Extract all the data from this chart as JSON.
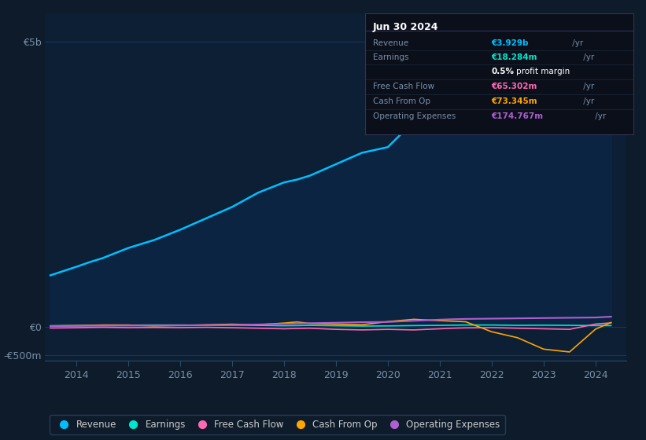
{
  "background_color": "#0d1b2a",
  "plot_bg_color": "#0d1f35",
  "grid_color": "#1e3a5f",
  "title_box": {
    "date": "Jun 30 2024",
    "rows": [
      {
        "label": "Revenue",
        "value": "€3.929b",
        "value_color": "#00bfff"
      },
      {
        "label": "Earnings",
        "value": "€18.284m",
        "value_color": "#00e5cc"
      },
      {
        "label": "",
        "value": "0.5% profit margin",
        "value_color": "#ffffff"
      },
      {
        "label": "Free Cash Flow",
        "value": "€65.302m",
        "value_color": "#ff69b4"
      },
      {
        "label": "Cash From Op",
        "value": "€73.345m",
        "value_color": "#ffa500"
      },
      {
        "label": "Operating Expenses",
        "value": "€174.767m",
        "value_color": "#b05fd0"
      }
    ]
  },
  "years": [
    2013.5,
    2014,
    2014.25,
    2014.5,
    2015,
    2015.5,
    2016,
    2016.5,
    2017,
    2017.5,
    2018,
    2018.25,
    2018.5,
    2019,
    2019.5,
    2020,
    2020.5,
    2021,
    2021.25,
    2021.5,
    2022,
    2022.5,
    2023,
    2023.5,
    2024,
    2024.3
  ],
  "revenue": [
    900,
    1050,
    1130,
    1200,
    1380,
    1520,
    1700,
    1900,
    2100,
    2350,
    2530,
    2580,
    2650,
    2850,
    3050,
    3150,
    3600,
    4650,
    4850,
    4900,
    4750,
    4600,
    4300,
    4050,
    3850,
    3929
  ],
  "earnings": [
    15,
    18,
    20,
    22,
    25,
    28,
    28,
    25,
    28,
    22,
    15,
    18,
    22,
    15,
    10,
    12,
    18,
    22,
    25,
    28,
    28,
    22,
    25,
    22,
    18,
    18
  ],
  "free_cash_flow": [
    -25,
    -20,
    -15,
    -12,
    -18,
    -15,
    -18,
    -12,
    -20,
    -28,
    -38,
    -32,
    -28,
    -48,
    -58,
    -48,
    -58,
    -38,
    -28,
    -22,
    -18,
    -28,
    -38,
    -48,
    45,
    65
  ],
  "cash_from_op": [
    12,
    18,
    22,
    28,
    28,
    12,
    22,
    32,
    42,
    32,
    62,
    82,
    55,
    42,
    32,
    88,
    128,
    105,
    95,
    85,
    -90,
    -195,
    -395,
    -445,
    -45,
    73
  ],
  "operating_expenses": [
    8,
    12,
    14,
    15,
    18,
    18,
    20,
    24,
    28,
    38,
    48,
    55,
    60,
    68,
    78,
    82,
    102,
    122,
    130,
    135,
    140,
    145,
    150,
    155,
    160,
    175
  ],
  "ylim": [
    -600,
    5500
  ],
  "yticks": [
    -500,
    0,
    5000
  ],
  "ytick_labels": [
    "-€500m",
    "€0",
    "€5b"
  ],
  "xlabel_years": [
    2014,
    2015,
    2016,
    2017,
    2018,
    2019,
    2020,
    2021,
    2022,
    2023,
    2024
  ],
  "legend": [
    {
      "label": "Revenue",
      "color": "#00bfff"
    },
    {
      "label": "Earnings",
      "color": "#00e5cc"
    },
    {
      "label": "Free Cash Flow",
      "color": "#ff69b4"
    },
    {
      "label": "Cash From Op",
      "color": "#ffa500"
    },
    {
      "label": "Operating Expenses",
      "color": "#b05fd0"
    }
  ]
}
